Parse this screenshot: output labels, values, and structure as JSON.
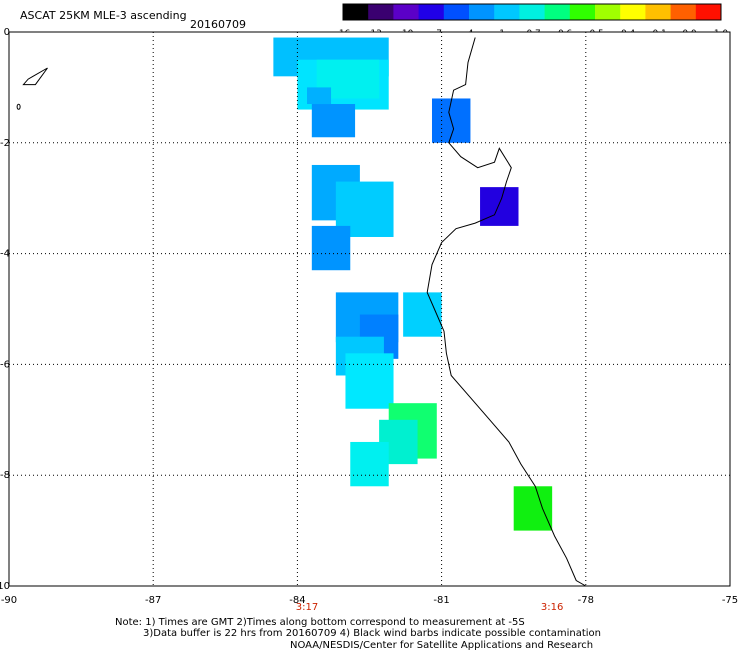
{
  "header": {
    "title": "ASCAT 25KM MLE-3 ascending",
    "date": "20160709"
  },
  "colorbar": {
    "tick_labels": [
      "-16",
      "-13",
      "-10",
      "-7",
      "-4",
      "-1",
      "-0.7",
      "-0.6",
      "-0.5",
      "-0.4",
      "-0.1",
      "0.0",
      "1.0"
    ],
    "colors": [
      "#000000",
      "#3a0070",
      "#5b00c8",
      "#2000e8",
      "#0050ff",
      "#0094ff",
      "#00c8ff",
      "#00f0e0",
      "#00ff80",
      "#30ff00",
      "#a0ff00",
      "#ffff00",
      "#ffc000",
      "#ff6000",
      "#ff1000"
    ]
  },
  "map": {
    "lon_range": [
      -90,
      -75
    ],
    "lat_range": [
      -10,
      0
    ],
    "x_tick_labels": [
      "-90",
      "-87",
      "-84",
      "-81",
      "-78",
      "-75"
    ],
    "y_tick_labels": [
      "0",
      "-2",
      "-4",
      "-6",
      "-8",
      "-10"
    ],
    "time_labels": [
      {
        "text": "3:17",
        "lon": -83.8
      },
      {
        "text": "3:16",
        "lon": -78.7
      }
    ],
    "time_color": "#cc2200",
    "cells": [
      {
        "lon_min": -84.5,
        "lon_max": -82.1,
        "lat_min": -0.8,
        "lat_max": -0.1,
        "color": "#00c0ff"
      },
      {
        "lon_min": -84.0,
        "lon_max": -82.1,
        "lat_min": -1.4,
        "lat_max": -0.5,
        "color": "#00e4ff"
      },
      {
        "lon_min": -83.6,
        "lon_max": -82.3,
        "lat_min": -1.2,
        "lat_max": -0.5,
        "color": "#00f0f0"
      },
      {
        "lon_min": -83.7,
        "lon_max": -82.8,
        "lat_min": -1.9,
        "lat_max": -1.3,
        "color": "#0094ff"
      },
      {
        "lon_min": -83.8,
        "lon_max": -83.3,
        "lat_min": -1.3,
        "lat_max": -1.0,
        "color": "#00b0ff"
      },
      {
        "lon_min": -81.2,
        "lon_max": -80.4,
        "lat_min": -2.0,
        "lat_max": -1.2,
        "color": "#0070ff"
      },
      {
        "lon_min": -80.2,
        "lon_max": -79.4,
        "lat_min": -3.5,
        "lat_max": -2.8,
        "color": "#2200e0"
      },
      {
        "lon_min": -83.7,
        "lon_max": -82.7,
        "lat_min": -3.4,
        "lat_max": -2.4,
        "color": "#00aaff"
      },
      {
        "lon_min": -83.2,
        "lon_max": -82.0,
        "lat_min": -3.7,
        "lat_max": -2.7,
        "color": "#00ccff"
      },
      {
        "lon_min": -83.7,
        "lon_max": -82.9,
        "lat_min": -4.3,
        "lat_max": -3.5,
        "color": "#0094ff"
      },
      {
        "lon_min": -83.2,
        "lon_max": -81.9,
        "lat_min": -5.6,
        "lat_max": -4.7,
        "color": "#00a0ff"
      },
      {
        "lon_min": -82.7,
        "lon_max": -81.9,
        "lat_min": -5.9,
        "lat_max": -5.1,
        "color": "#0080ff"
      },
      {
        "lon_min": -81.8,
        "lon_max": -81.0,
        "lat_min": -5.5,
        "lat_max": -4.7,
        "color": "#00d0ff"
      },
      {
        "lon_min": -83.2,
        "lon_max": -82.2,
        "lat_min": -6.2,
        "lat_max": -5.5,
        "color": "#00c8ff"
      },
      {
        "lon_min": -83.0,
        "lon_max": -82.0,
        "lat_min": -6.8,
        "lat_max": -5.8,
        "color": "#00e8ff"
      },
      {
        "lon_min": -82.1,
        "lon_max": -81.1,
        "lat_min": -7.7,
        "lat_max": -6.7,
        "color": "#10ff70"
      },
      {
        "lon_min": -82.3,
        "lon_max": -81.5,
        "lat_min": -7.8,
        "lat_max": -7.0,
        "color": "#00f0d0"
      },
      {
        "lon_min": -82.9,
        "lon_max": -82.1,
        "lat_min": -8.2,
        "lat_max": -7.4,
        "color": "#00f0f0"
      },
      {
        "lon_min": -79.5,
        "lon_max": -78.7,
        "lat_min": -9.0,
        "lat_max": -8.2,
        "color": "#10f010"
      }
    ],
    "coastline": [
      [
        -80.3,
        -0.1
      ],
      [
        -80.45,
        -0.55
      ],
      [
        -80.5,
        -0.95
      ],
      [
        -80.75,
        -1.05
      ],
      [
        -80.85,
        -1.45
      ],
      [
        -80.75,
        -1.75
      ],
      [
        -80.85,
        -2.0
      ],
      [
        -80.6,
        -2.25
      ],
      [
        -80.25,
        -2.45
      ],
      [
        -79.9,
        -2.35
      ],
      [
        -79.8,
        -2.1
      ],
      [
        -79.55,
        -2.45
      ],
      [
        -79.65,
        -2.7
      ],
      [
        -79.75,
        -3.0
      ],
      [
        -79.9,
        -3.3
      ],
      [
        -80.3,
        -3.45
      ],
      [
        -80.7,
        -3.55
      ],
      [
        -81.0,
        -3.8
      ],
      [
        -81.2,
        -4.2
      ],
      [
        -81.3,
        -4.7
      ],
      [
        -81.15,
        -5.0
      ],
      [
        -80.95,
        -5.4
      ],
      [
        -80.9,
        -5.8
      ],
      [
        -80.8,
        -6.2
      ],
      [
        -80.4,
        -6.6
      ],
      [
        -80.0,
        -7.0
      ],
      [
        -79.6,
        -7.4
      ],
      [
        -79.35,
        -7.8
      ],
      [
        -79.05,
        -8.2
      ],
      [
        -78.9,
        -8.6
      ],
      [
        -78.65,
        -9.1
      ],
      [
        -78.4,
        -9.5
      ],
      [
        -78.2,
        -9.9
      ],
      [
        -78.0,
        -10.0
      ]
    ],
    "island": [
      [
        -89.5,
        -0.8
      ],
      [
        -89.2,
        -0.65
      ],
      [
        -89.45,
        -0.95
      ],
      [
        -89.7,
        -0.95
      ],
      [
        -89.6,
        -0.85
      ]
    ],
    "islet": [
      -89.8,
      -1.35
    ]
  },
  "footer": {
    "lines": [
      "Note: 1) Times are GMT 2)Times along bottom correspond to measurement at -5S",
      "3)Data buffer is 22 hrs from 20160709 4) Black wind barbs indicate possible contamination",
      "NOAA/NESDIS/Center for Satellite Applications and Research"
    ]
  }
}
